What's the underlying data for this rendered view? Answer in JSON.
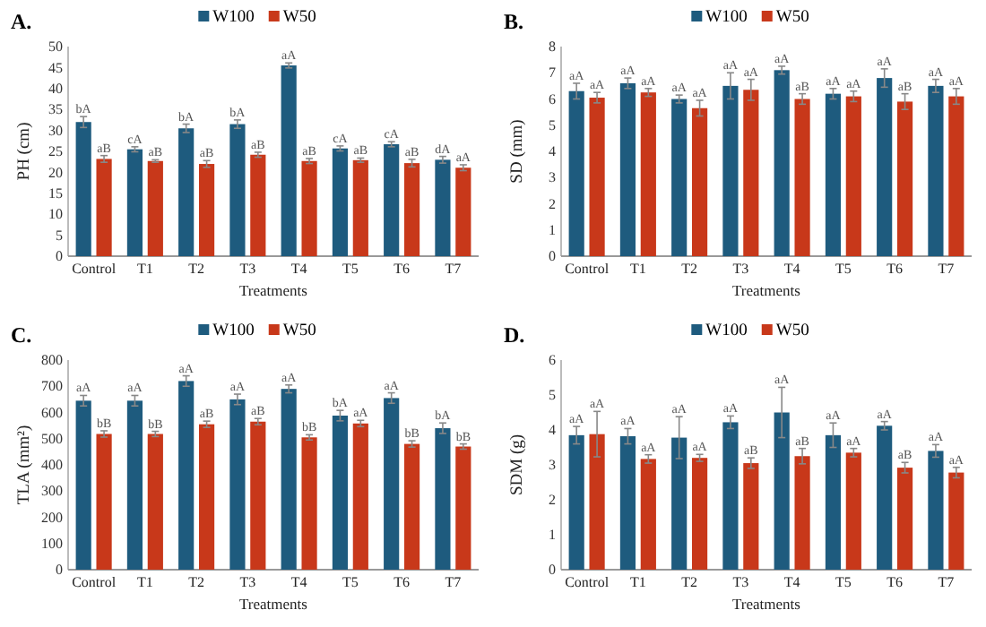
{
  "chart_data": [
    {
      "type": "bar",
      "title": "A.",
      "xlabel": "Treatments",
      "ylabel": "PH (cm)",
      "categories": [
        "Control",
        "T1",
        "T2",
        "T3",
        "T4",
        "T5",
        "T6",
        "T7"
      ],
      "ylim": [
        0,
        50
      ],
      "yticks": [
        0,
        5,
        10,
        15,
        20,
        25,
        30,
        35,
        40,
        45,
        50
      ],
      "legend": "top",
      "grid": false,
      "series": [
        {
          "name": "W100",
          "color": "#1e5b7e",
          "values": [
            32,
            25.5,
            30.5,
            31.5,
            45.5,
            25.7,
            26.7,
            23
          ],
          "errors": [
            1.3,
            0.6,
            1,
            1,
            0.6,
            0.6,
            0.6,
            0.8
          ],
          "value_labels": [
            "bA",
            "cA",
            "bA",
            "bA",
            "aA",
            "cA",
            "cA",
            "dA"
          ]
        },
        {
          "name": "W50",
          "color": "#c8381a",
          "values": [
            23.2,
            22.7,
            22,
            24.2,
            22.7,
            22.9,
            22.2,
            21.1
          ],
          "errors": [
            0.8,
            0.3,
            0.8,
            0.6,
            0.6,
            0.5,
            0.9,
            0.7
          ],
          "value_labels": [
            "aB",
            "aB",
            "aB",
            "aB",
            "aB",
            "aB",
            "aB",
            "aA"
          ]
        }
      ]
    },
    {
      "type": "bar",
      "title": "B.",
      "xlabel": "Treatments",
      "ylabel": "SD (mm)",
      "categories": [
        "Control",
        "T1",
        "T2",
        "T3",
        "T4",
        "T5",
        "T6",
        "T7"
      ],
      "ylim": [
        0,
        8
      ],
      "yticks": [
        0,
        1,
        2,
        3,
        4,
        5,
        6,
        7,
        8
      ],
      "legend": "top",
      "grid": false,
      "series": [
        {
          "name": "W100",
          "color": "#1e5b7e",
          "values": [
            6.3,
            6.6,
            6.0,
            6.5,
            7.1,
            6.2,
            6.8,
            6.5
          ],
          "errors": [
            0.3,
            0.2,
            0.15,
            0.5,
            0.15,
            0.2,
            0.35,
            0.25
          ],
          "value_labels": [
            "aA",
            "aA",
            "aA",
            "aA",
            "aA",
            "aA",
            "aA",
            "aA"
          ]
        },
        {
          "name": "W50",
          "color": "#c8381a",
          "values": [
            6.05,
            6.25,
            5.65,
            6.35,
            6.0,
            6.1,
            5.9,
            6.1
          ],
          "errors": [
            0.2,
            0.15,
            0.3,
            0.4,
            0.2,
            0.2,
            0.3,
            0.3
          ],
          "value_labels": [
            "aA",
            "aA",
            "aA",
            "aA",
            "aB",
            "aA",
            "aB",
            "aA"
          ]
        }
      ]
    },
    {
      "type": "bar",
      "title": "C.",
      "xlabel": "Treatments",
      "ylabel": "TLA (mm²)",
      "categories": [
        "Control",
        "T1",
        "T2",
        "T3",
        "T4",
        "T5",
        "T6",
        "T7"
      ],
      "ylim": [
        0,
        800
      ],
      "yticks": [
        0,
        100,
        200,
        300,
        400,
        500,
        600,
        700,
        800
      ],
      "legend": "top",
      "grid": false,
      "series": [
        {
          "name": "W100",
          "color": "#1e5b7e",
          "values": [
            645,
            645,
            720,
            650,
            690,
            588,
            655,
            540
          ],
          "errors": [
            20,
            20,
            20,
            20,
            15,
            20,
            20,
            20
          ],
          "value_labels": [
            "aA",
            "aA",
            "aA",
            "aA",
            "aA",
            "bA",
            "aA",
            "bA"
          ]
        },
        {
          "name": "W50",
          "color": "#c8381a",
          "values": [
            518,
            518,
            555,
            565,
            505,
            558,
            480,
            470
          ],
          "errors": [
            12,
            10,
            12,
            12,
            10,
            12,
            12,
            10
          ],
          "value_labels": [
            "bB",
            "bB",
            "aB",
            "aB",
            "bB",
            "aA",
            "bB",
            "bB"
          ]
        }
      ]
    },
    {
      "type": "bar",
      "title": "D.",
      "xlabel": "Treatments",
      "ylabel": "SDM (g)",
      "categories": [
        "Control",
        "T1",
        "T2",
        "T3",
        "T4",
        "T5",
        "T6",
        "T7"
      ],
      "ylim": [
        0,
        6
      ],
      "yticks": [
        0,
        1,
        2,
        3,
        4,
        5,
        6
      ],
      "legend": "top",
      "grid": false,
      "series": [
        {
          "name": "W100",
          "color": "#1e5b7e",
          "values": [
            3.85,
            3.82,
            3.78,
            4.22,
            4.5,
            3.85,
            4.12,
            3.4
          ],
          "errors": [
            0.25,
            0.22,
            0.6,
            0.18,
            0.72,
            0.35,
            0.12,
            0.18
          ],
          "value_labels": [
            "aA",
            "aA",
            "aA",
            "aA",
            "aA",
            "aA",
            "aA",
            "aA"
          ]
        },
        {
          "name": "W50",
          "color": "#c8381a",
          "values": [
            3.88,
            3.17,
            3.2,
            3.05,
            3.25,
            3.35,
            2.92,
            2.78
          ],
          "errors": [
            0.65,
            0.12,
            0.1,
            0.15,
            0.22,
            0.12,
            0.15,
            0.15
          ],
          "value_labels": [
            "aA",
            "aA",
            "aA",
            "aB",
            "aB",
            "aA",
            "aB",
            "aA"
          ]
        }
      ]
    }
  ]
}
